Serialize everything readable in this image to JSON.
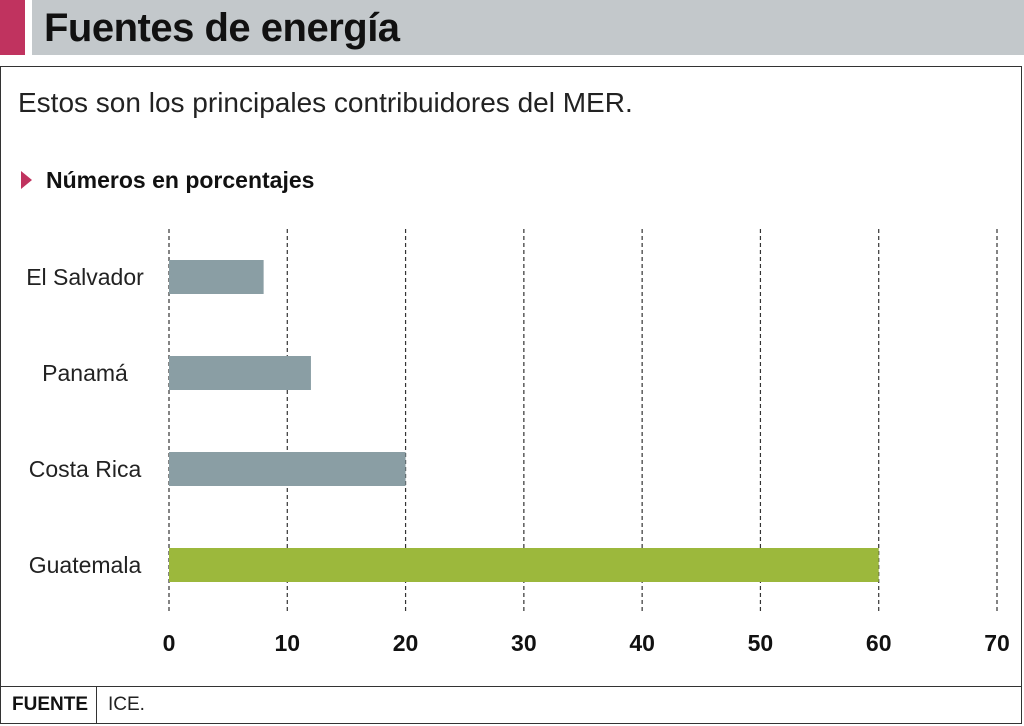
{
  "header": {
    "title": "Fuentes de energía"
  },
  "subtitle": "Estos son los principales contribuidores del MER.",
  "units_label": "Números en porcentajes",
  "colors": {
    "accent": "#c0335f",
    "bar_default": "#8a9ea4",
    "bar_highlight": "#9cb83c",
    "header_bg": "#c3c8cb"
  },
  "chart_data": {
    "type": "bar",
    "orientation": "horizontal",
    "categories": [
      "El Salvador",
      "Panamá",
      "Costa Rica",
      "Guatemala"
    ],
    "values": [
      8,
      12,
      20,
      60
    ],
    "highlight": "Guatemala",
    "xlim": [
      0,
      70
    ],
    "xticks": [
      "0",
      "10",
      "20",
      "30",
      "40",
      "50",
      "60",
      "70"
    ],
    "grid": true,
    "title": "",
    "xlabel": "",
    "ylabel": ""
  },
  "footer": {
    "source_label": "FUENTE",
    "source_value": "ICE."
  }
}
